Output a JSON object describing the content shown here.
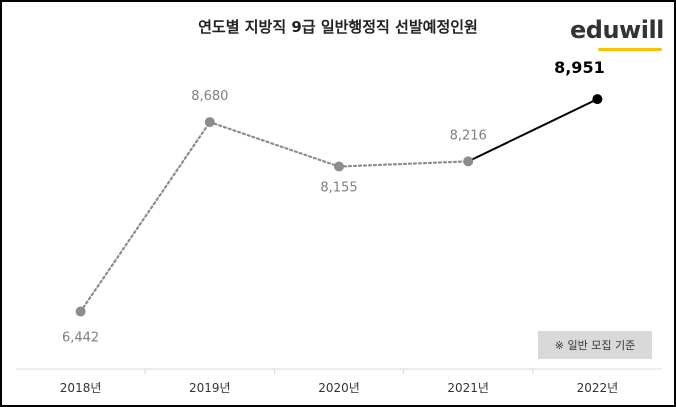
{
  "logo_text": "eduwill",
  "note": "※ 일반 모집 기준",
  "chart_data": {
    "type": "line",
    "title": "연도별 지방직 9급 일반행정직 선발예정인원",
    "categories": [
      "2018년",
      "2019년",
      "2020년",
      "2021년",
      "2022년"
    ],
    "values": [
      6442,
      8680,
      8155,
      8216,
      8951
    ],
    "value_labels": [
      "6,442",
      "8,680",
      "8,155",
      "8,216",
      "8,951"
    ],
    "xlabel": "",
    "ylabel": "",
    "grid": false,
    "colors": {
      "dotted_series": "#8c8c8c",
      "highlight": "#000000",
      "logo_accent": "#f7c300"
    }
  }
}
